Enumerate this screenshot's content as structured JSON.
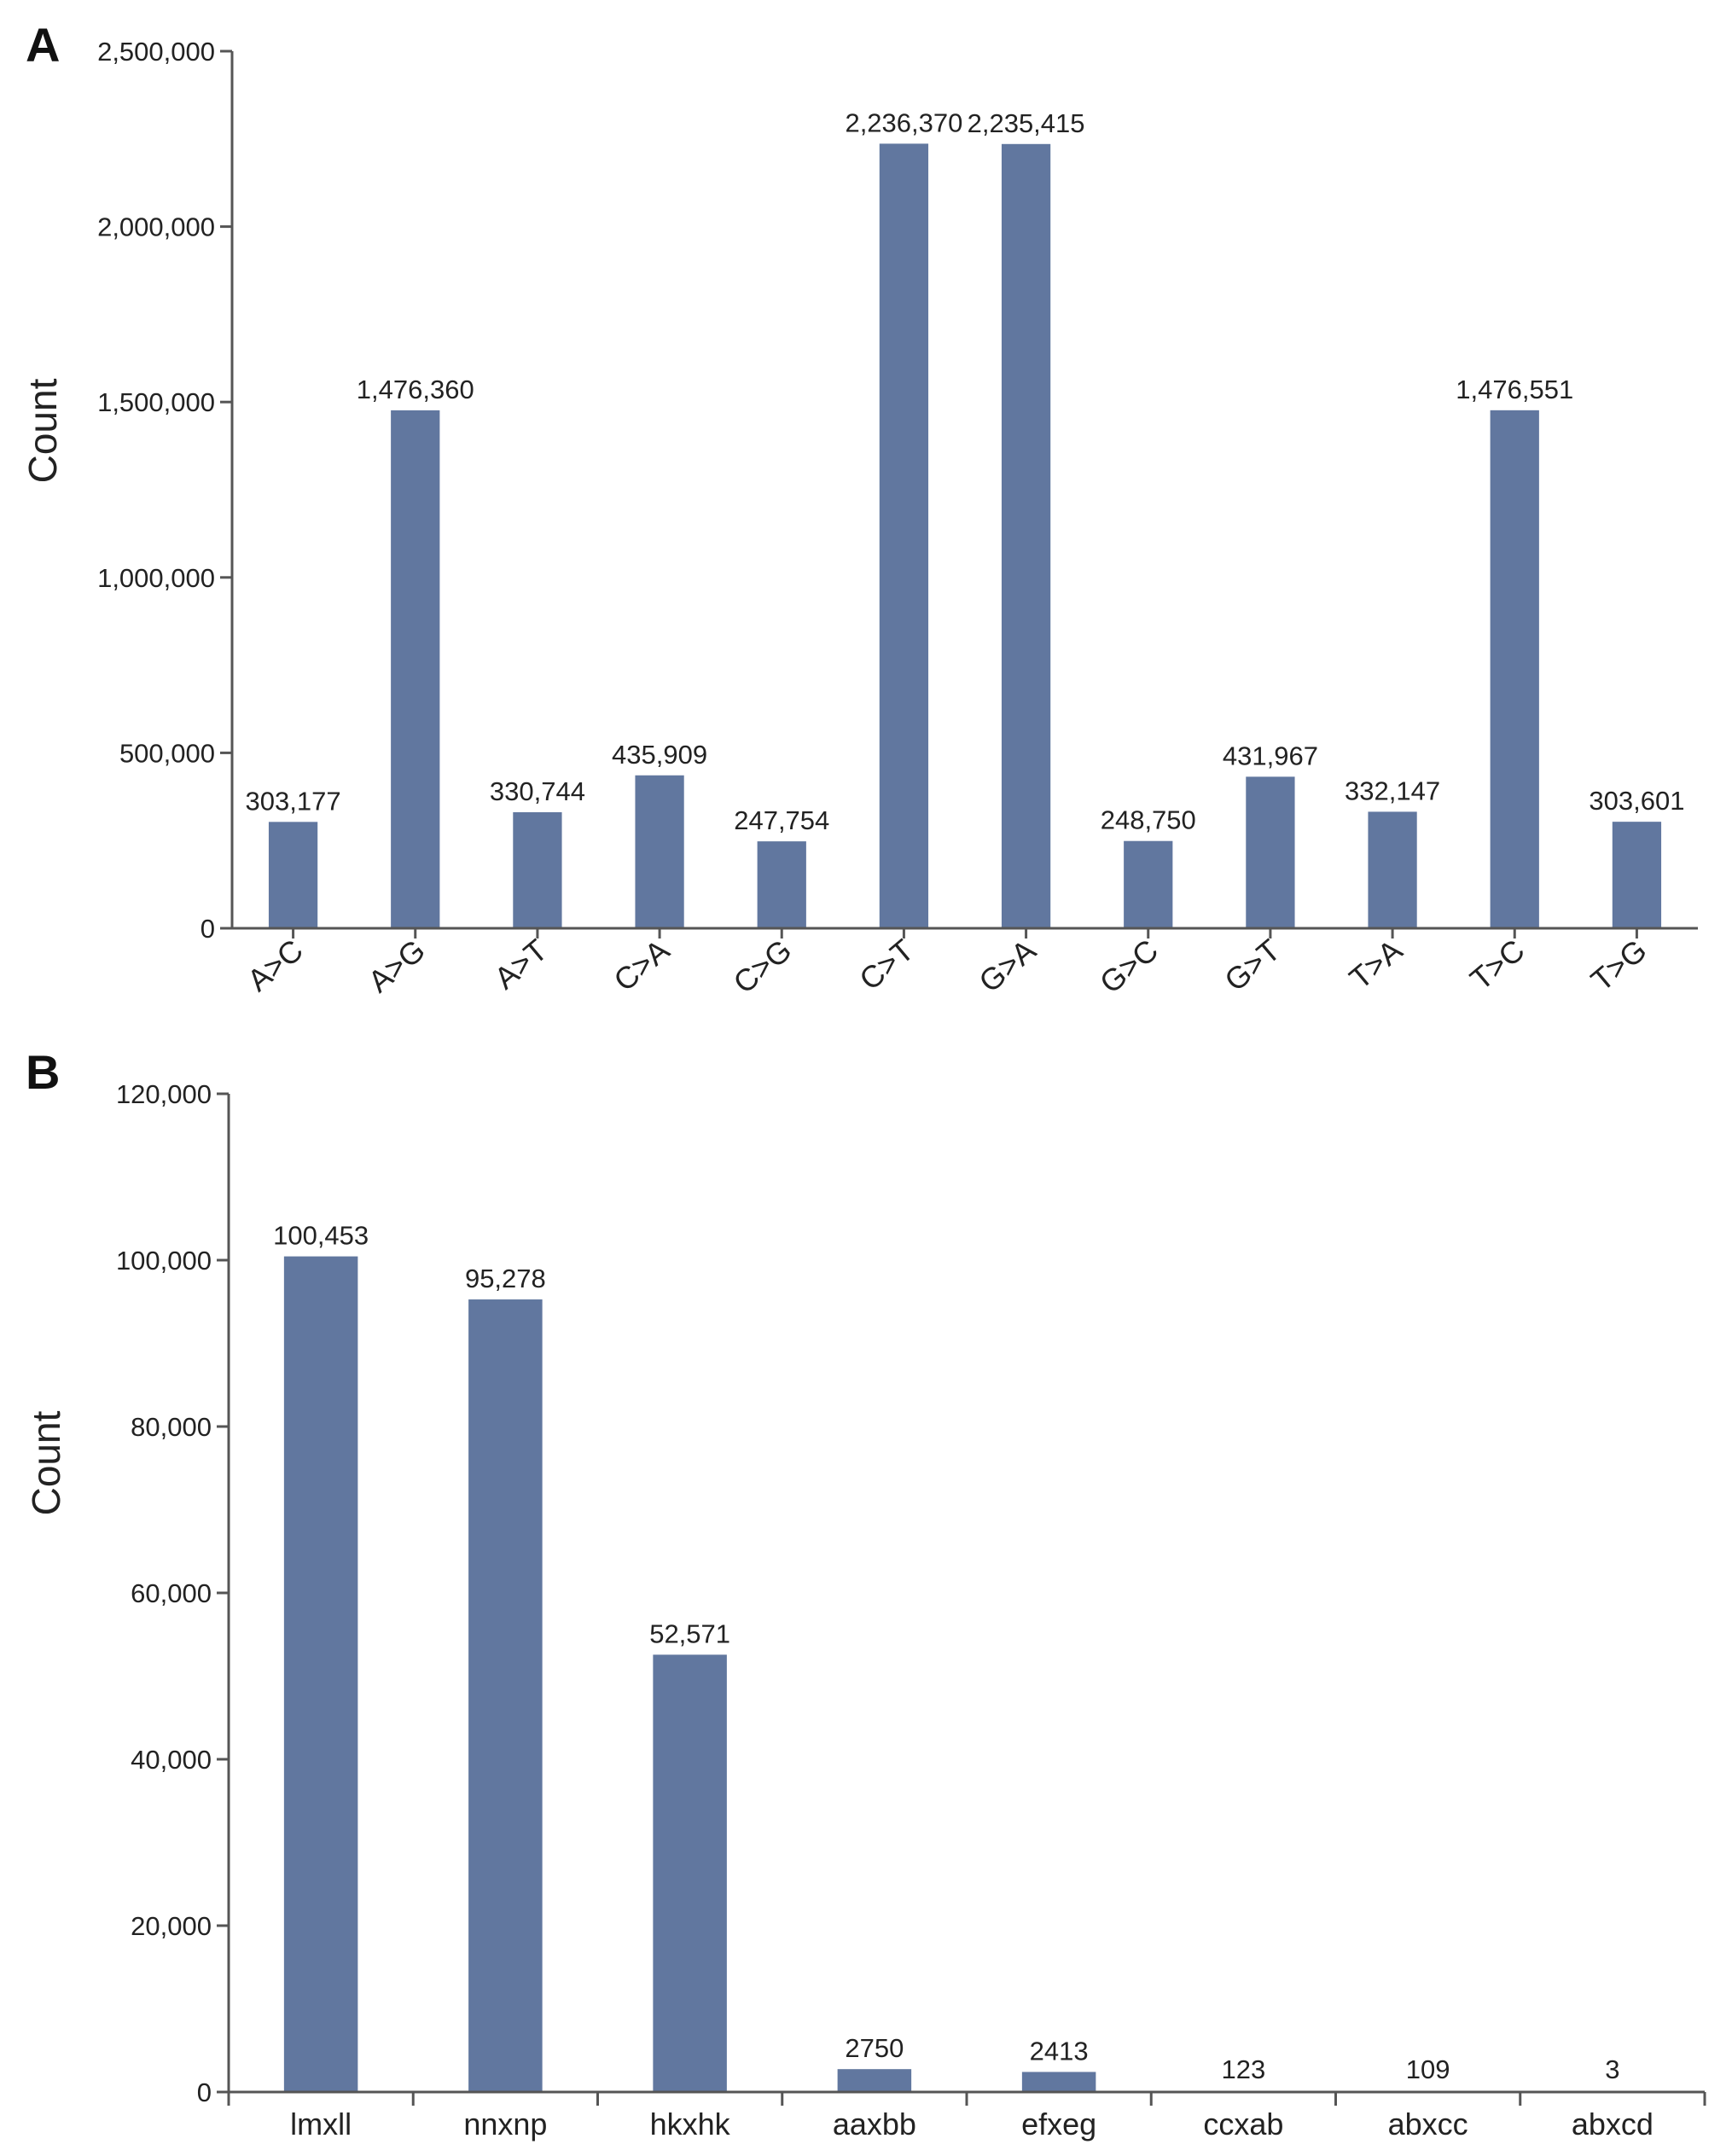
{
  "chart_data": [
    {
      "panel": "A",
      "type": "bar",
      "title": "",
      "xlabel": "",
      "ylabel": "Count",
      "ylim": [
        0,
        2500000
      ],
      "yticks": [
        "0",
        "500,000",
        "1,000,000",
        "1,500,000",
        "2,000,000",
        "2,500,000"
      ],
      "categories": [
        "A>C",
        "A>G",
        "A>T",
        "C>A",
        "C>G",
        "C>T",
        "G>A",
        "G>C",
        "G>T",
        "T>A",
        "T>C",
        "T>G"
      ],
      "values": [
        303177,
        1476360,
        330744,
        435909,
        247754,
        2236370,
        2235415,
        248750,
        431967,
        332147,
        1476551,
        303601
      ],
      "data_labels": [
        "303,177",
        "1,476,360",
        "330,744",
        "435,909",
        "247,754",
        "2,236,370",
        "2,235,415",
        "248,750",
        "431,967",
        "332,147",
        "1,476,551",
        "303,601"
      ],
      "bar_color": "#61779f",
      "grid": false
    },
    {
      "panel": "B",
      "type": "bar",
      "title": "",
      "xlabel": "",
      "ylabel": "Count",
      "ylim": [
        0,
        120000
      ],
      "yticks": [
        "0",
        "20,000",
        "40,000",
        "60,000",
        "80,000",
        "100,000",
        "120,000"
      ],
      "categories": [
        "lmxll",
        "nnxnp",
        "hkxhk",
        "aaxbb",
        "efxeg",
        "ccxab",
        "abxcc",
        "abxcd"
      ],
      "values": [
        100453,
        95278,
        52571,
        2750,
        2413,
        123,
        109,
        3
      ],
      "data_labels": [
        "100,453",
        "95,278",
        "52,571",
        "2750",
        "2413",
        "123",
        "109",
        "3"
      ],
      "bar_color": "#61779f",
      "grid": false
    }
  ]
}
